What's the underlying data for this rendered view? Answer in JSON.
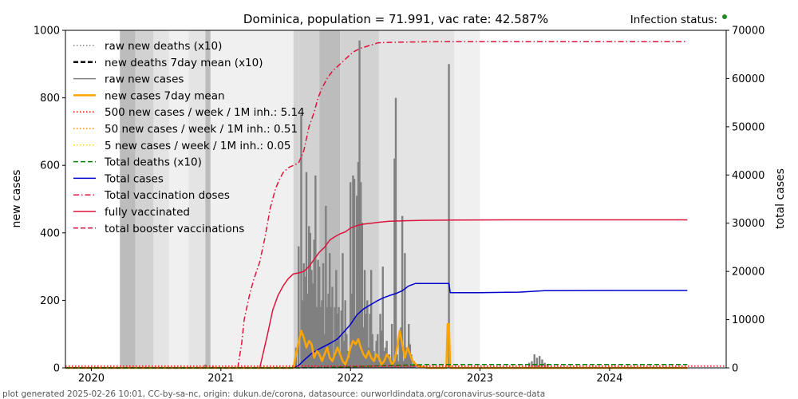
{
  "chart_data": {
    "type": "line",
    "title": "Dominica, population = 71.991, vac rate: 42.587%",
    "status_label": "Infection status:",
    "status_color": "#228b22",
    "ylabel_left": "new cases",
    "ylabel_right": "total cases",
    "footer": "plot generated 2025-02-26 10:01, CC-by-sa-nc, origin: dukun.de/corona, datasource: ourworldindata.org/coronavirus-source-data",
    "x_range": [
      2019.8,
      2024.9
    ],
    "ylim_left": [
      0,
      1000
    ],
    "ylim_right": [
      0,
      70000
    ],
    "x_ticks": [
      {
        "value": 2020,
        "label": "2020"
      },
      {
        "value": 2021,
        "label": "2021"
      },
      {
        "value": 2022,
        "label": "2022"
      },
      {
        "value": 2023,
        "label": "2023"
      },
      {
        "value": 2024,
        "label": "2024"
      }
    ],
    "y_ticks_left": [
      {
        "value": 0,
        "label": "0"
      },
      {
        "value": 200,
        "label": "200"
      },
      {
        "value": 400,
        "label": "400"
      },
      {
        "value": 600,
        "label": "600"
      },
      {
        "value": 800,
        "label": "800"
      },
      {
        "value": 1000,
        "label": "1000"
      }
    ],
    "y_ticks_right": [
      {
        "value": 0,
        "label": "0"
      },
      {
        "value": 10000,
        "label": "10000"
      },
      {
        "value": 20000,
        "label": "20000"
      },
      {
        "value": 30000,
        "label": "30000"
      },
      {
        "value": 40000,
        "label": "40000"
      },
      {
        "value": 50000,
        "label": "50000"
      },
      {
        "value": 60000,
        "label": "60000"
      },
      {
        "value": 70000,
        "label": "70000"
      }
    ],
    "legend": [
      {
        "label": "raw new deaths (x10)",
        "color": "#808080",
        "style": "dotted",
        "width": 1.5
      },
      {
        "label": "new deaths 7day mean (x10)",
        "color": "#000000",
        "style": "dashed",
        "width": 2.5
      },
      {
        "label": "raw new cases",
        "color": "#808080",
        "style": "solid",
        "width": 1.5
      },
      {
        "label": "new cases 7day mean",
        "color": "#ffa500",
        "style": "solid",
        "width": 2.5
      },
      {
        "label": "500 new cases / week / 1M inh.: 5.14",
        "color": "#ff0000",
        "style": "dotted",
        "width": 1.5
      },
      {
        "label": "50 new cases / week / 1M inh.: 0.51",
        "color": "#ff8c00",
        "style": "dotted",
        "width": 1.5
      },
      {
        "label": "5 new cases / week / 1M inh.: 0.05",
        "color": "#ffd700",
        "style": "dotted",
        "width": 1.5
      },
      {
        "label": "Total deaths (x10)",
        "color": "#008000",
        "style": "dashed",
        "width": 1.5
      },
      {
        "label": "Total cases",
        "color": "#0000cd",
        "style": "solid",
        "width": 1.5
      },
      {
        "label": "Total vaccination doses",
        "color": "#dc143c",
        "style": "dashdot",
        "width": 1.5
      },
      {
        "label": "fully vaccinated",
        "color": "#dc143c",
        "style": "solid",
        "width": 1.5
      },
      {
        "label": "total booster vaccinations",
        "color": "#dc143c",
        "style": "dashed",
        "width": 1.5
      }
    ],
    "shade_periods": [
      {
        "start": 2020.22,
        "end": 2020.34,
        "level": 3
      },
      {
        "start": 2020.34,
        "end": 2020.48,
        "level": 2
      },
      {
        "start": 2020.48,
        "end": 2020.6,
        "level": 1
      },
      {
        "start": 2020.6,
        "end": 2020.75,
        "level": 0
      },
      {
        "start": 2020.75,
        "end": 2020.88,
        "level": 1
      },
      {
        "start": 2020.88,
        "end": 2020.92,
        "level": 3
      },
      {
        "start": 2020.92,
        "end": 2021.3,
        "level": 0
      },
      {
        "start": 2021.3,
        "end": 2021.56,
        "level": 0
      },
      {
        "start": 2021.56,
        "end": 2021.6,
        "level": 2
      },
      {
        "start": 2021.6,
        "end": 2021.76,
        "level": 2
      },
      {
        "start": 2021.76,
        "end": 2021.92,
        "level": 3
      },
      {
        "start": 2021.92,
        "end": 2022.22,
        "level": 2
      },
      {
        "start": 2022.22,
        "end": 2022.8,
        "level": 1
      },
      {
        "start": 2022.8,
        "end": 2023.0,
        "level": 0
      }
    ],
    "series": [
      {
        "name": "Total vaccination doses",
        "axis": "right",
        "color": "#dc143c",
        "style": "dashdot",
        "x": [
          2021.13,
          2021.16,
          2021.18,
          2021.22,
          2021.25,
          2021.3,
          2021.34,
          2021.38,
          2021.42,
          2021.45,
          2021.48,
          2021.52,
          2021.56,
          2021.6,
          2021.64,
          2021.68,
          2021.72,
          2021.75,
          2021.78,
          2021.82,
          2021.86,
          2021.9,
          2021.94,
          2021.98,
          2022.02,
          2022.08,
          2022.13,
          2022.2,
          2022.21,
          2022.3,
          2022.4,
          2022.55,
          2022.7,
          2022.85,
          2023.0,
          2023.5,
          2024.0,
          2024.6
        ],
        "values": [
          0,
          5000,
          10000,
          15000,
          18000,
          22000,
          27000,
          33000,
          37000,
          39000,
          40500,
          41500,
          42000,
          42500,
          45000,
          50000,
          53000,
          56000,
          58000,
          60000,
          61500,
          62500,
          63500,
          64500,
          65500,
          66300,
          66700,
          67300,
          67400,
          67500,
          67550,
          67600,
          67650,
          67650,
          67650,
          67650,
          67650,
          67650
        ]
      },
      {
        "name": "fully vaccinated",
        "axis": "right",
        "color": "#dc143c",
        "style": "solid",
        "x": [
          2021.3,
          2021.33,
          2021.36,
          2021.4,
          2021.44,
          2021.48,
          2021.52,
          2021.56,
          2021.6,
          2021.64,
          2021.68,
          2021.72,
          2021.76,
          2021.8,
          2021.84,
          2021.88,
          2021.92,
          2021.96,
          2022.0,
          2022.05,
          2022.1,
          2022.16,
          2022.22,
          2022.3,
          2022.4,
          2022.55,
          2022.8,
          2023.2,
          2024.0,
          2024.6
        ],
        "values": [
          0,
          3500,
          7000,
          12000,
          15000,
          17000,
          18500,
          19500,
          19700,
          20000,
          21000,
          22500,
          24000,
          25000,
          26500,
          27200,
          27800,
          28200,
          29000,
          29500,
          29800,
          30000,
          30200,
          30400,
          30500,
          30600,
          30650,
          30700,
          30700,
          30700
        ]
      },
      {
        "name": "Total cases",
        "axis": "right",
        "color": "#0000cd",
        "style": "solid",
        "x": [
          2019.8,
          2021.56,
          2021.6,
          2021.65,
          2021.7,
          2021.75,
          2021.8,
          2021.85,
          2021.9,
          2021.95,
          2022.0,
          2022.05,
          2022.1,
          2022.15,
          2022.2,
          2022.25,
          2022.3,
          2022.35,
          2022.4,
          2022.45,
          2022.5,
          2022.6,
          2022.76,
          2022.77,
          2023.0,
          2023.3,
          2023.5,
          2024.0,
          2024.6
        ],
        "values": [
          0,
          0,
          500,
          1800,
          3000,
          3800,
          4500,
          5200,
          6000,
          7500,
          9000,
          11000,
          12200,
          13000,
          13800,
          14500,
          15000,
          15400,
          16000,
          17000,
          17500,
          17500,
          17500,
          15600,
          15600,
          15700,
          16000,
          16050,
          16050
        ]
      },
      {
        "name": "new cases 7day mean",
        "axis": "left",
        "color": "#ffa500",
        "style": "solid",
        "width": 2.5,
        "x": [
          2019.8,
          2021.56,
          2021.59,
          2021.62,
          2021.64,
          2021.66,
          2021.68,
          2021.7,
          2021.72,
          2021.74,
          2021.76,
          2021.78,
          2021.8,
          2021.82,
          2021.84,
          2021.86,
          2021.88,
          2021.9,
          2021.92,
          2021.94,
          2021.96,
          2021.98,
          2022.0,
          2022.02,
          2022.04,
          2022.06,
          2022.08,
          2022.1,
          2022.12,
          2022.14,
          2022.16,
          2022.18,
          2022.2,
          2022.22,
          2022.24,
          2022.26,
          2022.28,
          2022.3,
          2022.32,
          2022.34,
          2022.36,
          2022.38,
          2022.4,
          2022.42,
          2022.44,
          2022.46,
          2022.48,
          2022.52,
          2022.6,
          2022.7,
          2022.74,
          2022.75,
          2022.76,
          2022.77,
          2022.78,
          2022.8,
          2023.0,
          2024.6
        ],
        "values": [
          0,
          0,
          60,
          110,
          90,
          60,
          80,
          70,
          30,
          50,
          40,
          20,
          40,
          60,
          30,
          20,
          40,
          60,
          40,
          20,
          10,
          30,
          60,
          80,
          70,
          85,
          60,
          40,
          30,
          50,
          30,
          20,
          40,
          30,
          10,
          20,
          40,
          30,
          10,
          20,
          60,
          110,
          70,
          30,
          60,
          40,
          20,
          5,
          0,
          0,
          0,
          130,
          130,
          0,
          0,
          0,
          0,
          0
        ]
      },
      {
        "name": "Total deaths (x10)",
        "axis": "left",
        "color": "#008000",
        "style": "dashed",
        "x": [
          2019.8,
          2021.6,
          2021.8,
          2022.0,
          2022.2,
          2022.4,
          2022.6,
          2024.6
        ],
        "values": [
          0,
          0,
          1,
          3,
          6,
          8,
          10,
          10
        ]
      },
      {
        "name": "500 new cases / week / 1M inh.: 5.14",
        "axis": "left",
        "color": "#ff0000",
        "style": "dotted",
        "x": [
          2019.8,
          2024.9
        ],
        "values": [
          5.14,
          5.14
        ]
      }
    ],
    "raw_new_cases": {
      "color": "#808080",
      "x": [
        2020.88,
        2020.94,
        2021.58,
        2021.6,
        2021.62,
        2021.63,
        2021.64,
        2021.65,
        2021.66,
        2021.67,
        2021.68,
        2021.69,
        2021.7,
        2021.71,
        2021.72,
        2021.73,
        2021.74,
        2021.75,
        2021.76,
        2021.77,
        2021.78,
        2021.79,
        2021.8,
        2021.81,
        2021.82,
        2021.83,
        2021.84,
        2021.85,
        2021.86,
        2021.87,
        2021.88,
        2021.89,
        2021.9,
        2021.91,
        2021.92,
        2021.93,
        2021.94,
        2021.95,
        2021.96,
        2021.97,
        2021.98,
        2021.99,
        2022.0,
        2022.01,
        2022.02,
        2022.03,
        2022.04,
        2022.05,
        2022.06,
        2022.07,
        2022.08,
        2022.09,
        2022.1,
        2022.11,
        2022.12,
        2022.13,
        2022.14,
        2022.15,
        2022.16,
        2022.17,
        2022.18,
        2022.19,
        2022.2,
        2022.21,
        2022.22,
        2022.23,
        2022.24,
        2022.25,
        2022.26,
        2022.27,
        2022.28,
        2022.29,
        2022.3,
        2022.31,
        2022.32,
        2022.33,
        2022.34,
        2022.35,
        2022.36,
        2022.37,
        2022.38,
        2022.39,
        2022.4,
        2022.41,
        2022.42,
        2022.43,
        2022.44,
        2022.45,
        2022.46,
        2022.47,
        2022.48,
        2022.49,
        2022.5,
        2022.76,
        2023.38,
        2023.4,
        2023.42,
        2023.44,
        2023.46,
        2023.48,
        2023.5,
        2023.52
      ],
      "values": [
        10,
        5,
        60,
        360,
        750,
        200,
        310,
        270,
        580,
        220,
        420,
        400,
        290,
        250,
        380,
        570,
        180,
        320,
        300,
        180,
        200,
        310,
        100,
        480,
        180,
        220,
        340,
        180,
        240,
        30,
        180,
        290,
        160,
        180,
        40,
        170,
        340,
        80,
        200,
        100,
        50,
        30,
        550,
        220,
        570,
        560,
        150,
        510,
        610,
        970,
        550,
        430,
        120,
        290,
        160,
        200,
        60,
        160,
        290,
        100,
        50,
        20,
        80,
        100,
        20,
        160,
        110,
        300,
        50,
        60,
        80,
        30,
        40,
        20,
        130,
        20,
        620,
        800,
        40,
        20,
        100,
        120,
        450,
        20,
        340,
        60,
        50,
        130,
        70,
        40,
        10,
        20,
        10,
        900,
        15,
        20,
        40,
        30,
        35,
        25,
        15,
        10
      ]
    }
  }
}
